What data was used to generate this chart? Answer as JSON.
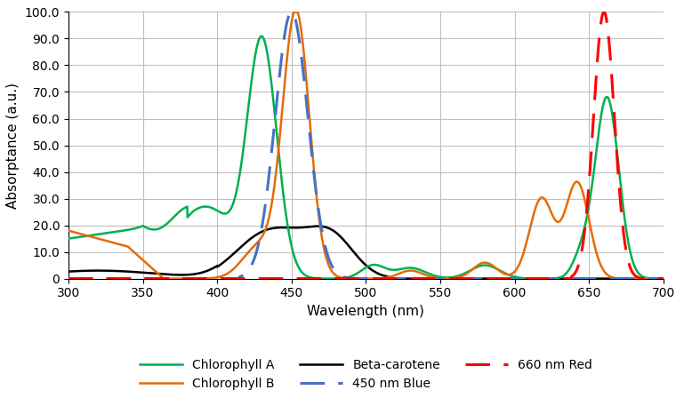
{
  "xlabel": "Wavelength (nm)",
  "ylabel": "Absorptance (a.u.)",
  "xlim": [
    300,
    700
  ],
  "ylim": [
    0,
    100
  ],
  "yticks": [
    0,
    10,
    20,
    30,
    40,
    50,
    60,
    70,
    80,
    90,
    100
  ],
  "ytick_labels": [
    "0",
    "10.0",
    "20.0",
    "30.0",
    "40.0",
    "50.0",
    "60.0",
    "70.0",
    "80.0",
    "90.0",
    "100.0"
  ],
  "xticks": [
    300,
    350,
    400,
    450,
    500,
    550,
    600,
    650,
    700
  ],
  "colors": {
    "chl_a": "#00b050",
    "chl_b": "#e36c09",
    "beta_carotene": "#000000",
    "blue_450": "#4472c4",
    "red_660": "#ff0000"
  },
  "line_widths": {
    "chl_a": 1.8,
    "chl_b": 1.8,
    "beta_carotene": 1.8,
    "blue_450": 2.2,
    "red_660": 2.2
  },
  "background_color": "#ffffff",
  "grid_color": "#bfbfbf"
}
